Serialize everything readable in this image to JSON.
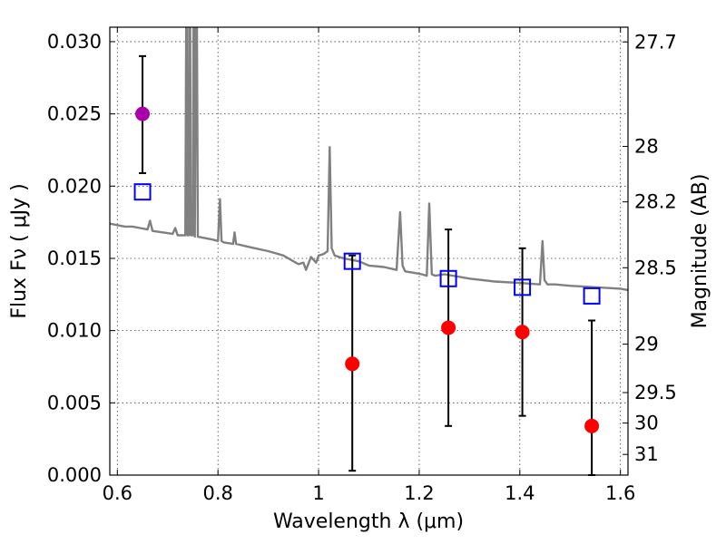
{
  "chart_data": {
    "type": "scatter",
    "title": "",
    "xlabel": "Wavelength  λ (μm)",
    "ylabel": "Flux  Fν  ( μJy )",
    "y2label": "Magnitude (AB)",
    "xlim": [
      0.585,
      1.615
    ],
    "ylim": [
      0.0,
      0.031
    ],
    "grid": true,
    "x_ticks": [
      0.6,
      0.8,
      1.0,
      1.2,
      1.4,
      1.6
    ],
    "x_tick_labels": [
      "0.6",
      "0.8",
      "1",
      "1.2",
      "1.4",
      "1.6"
    ],
    "y_ticks": [
      0.0,
      0.005,
      0.01,
      0.015,
      0.02,
      0.025,
      0.03
    ],
    "y_tick_labels": [
      "0.000",
      "0.005",
      "0.010",
      "0.015",
      "0.020",
      "0.025",
      "0.030"
    ],
    "y2_ticks": [
      {
        "label": "27.7",
        "flux": 0.02998
      },
      {
        "label": "28",
        "flux": 0.02275
      },
      {
        "label": "28.2",
        "flux": 0.01891
      },
      {
        "label": "28.5",
        "flux": 0.01435
      },
      {
        "label": "29",
        "flux": 0.00906
      },
      {
        "label": "29.5",
        "flux": 0.00571
      },
      {
        "label": "30",
        "flux": 0.0036
      },
      {
        "label": "31",
        "flux": 0.00143
      }
    ],
    "colors": {
      "spectrum": "#808080",
      "observed": "#ff0000",
      "highlight": "#aa00aa",
      "model": "#0000ff",
      "errorbar": "#000000"
    },
    "series": [
      {
        "kind": "line",
        "x": [
          0.585,
          0.6,
          0.615,
          0.63,
          0.645,
          0.66,
          0.665,
          0.67,
          0.69,
          0.71,
          0.715,
          0.72,
          0.735,
          0.738,
          0.739,
          0.742,
          0.744,
          0.746,
          0.75,
          0.752,
          0.754,
          0.757,
          0.76,
          0.775,
          0.79,
          0.8,
          0.804,
          0.807,
          0.812,
          0.83,
          0.833,
          0.836,
          0.86,
          0.9,
          0.93,
          0.95,
          0.96,
          0.97,
          0.975,
          0.985,
          0.995,
          1.0,
          1.01,
          1.018,
          1.022,
          1.026,
          1.032,
          1.05,
          1.08,
          1.1,
          1.13,
          1.155,
          1.162,
          1.167,
          1.172,
          1.19,
          1.205,
          1.215,
          1.22,
          1.225,
          1.232,
          1.25,
          1.3,
          1.35,
          1.4,
          1.44,
          1.445,
          1.449,
          1.455,
          1.47,
          1.5,
          1.55,
          1.6,
          1.615
        ],
        "y": [
          0.0174,
          0.0173,
          0.0172,
          0.0172,
          0.0171,
          0.017,
          0.0176,
          0.0169,
          0.0168,
          0.0167,
          0.0171,
          0.0166,
          0.0166,
          0.04,
          0.0166,
          0.0166,
          0.04,
          0.0166,
          0.0166,
          0.04,
          0.0165,
          0.04,
          0.0165,
          0.0164,
          0.0163,
          0.0162,
          0.0191,
          0.0162,
          0.0161,
          0.016,
          0.0168,
          0.016,
          0.0158,
          0.0155,
          0.0152,
          0.0148,
          0.0146,
          0.0147,
          0.0142,
          0.0151,
          0.0147,
          0.0152,
          0.0153,
          0.0155,
          0.0227,
          0.0157,
          0.0152,
          0.015,
          0.0148,
          0.0145,
          0.0144,
          0.0142,
          0.0182,
          0.0145,
          0.0141,
          0.014,
          0.0139,
          0.0138,
          0.0188,
          0.0139,
          0.0138,
          0.0139,
          0.0136,
          0.0134,
          0.0133,
          0.0132,
          0.0162,
          0.0135,
          0.0132,
          0.0132,
          0.0131,
          0.013,
          0.0129,
          0.0128
        ]
      },
      {
        "kind": "points",
        "marker": "circle",
        "x": [
          0.65,
          1.067,
          1.258,
          1.405,
          1.543
        ],
        "y": [
          0.025,
          0.0077,
          0.0102,
          0.0099,
          0.0034
        ],
        "yerr_low": [
          0.0041,
          0.0074,
          0.0068,
          0.0058,
          0.0034
        ],
        "yerr_high": [
          0.004,
          0.0075,
          0.0068,
          0.0058,
          0.0073
        ]
      },
      {
        "kind": "points",
        "marker": "square",
        "x": [
          0.65,
          1.067,
          1.258,
          1.405,
          1.543
        ],
        "y": [
          0.0196,
          0.0148,
          0.0136,
          0.013,
          0.0124
        ]
      }
    ]
  }
}
